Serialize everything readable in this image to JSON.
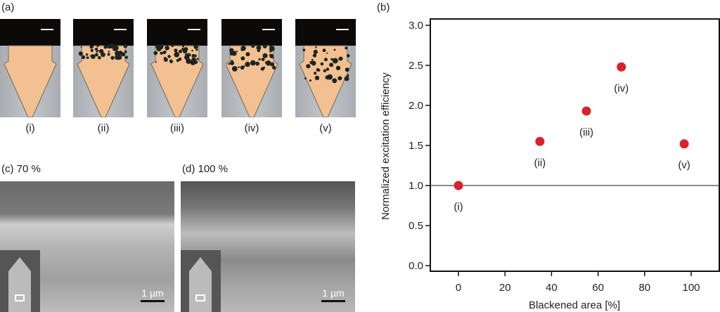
{
  "panel_a": {
    "label": "(a)",
    "captions": [
      "(i)",
      "(ii)",
      "(iii)",
      "(iv)",
      "(v)"
    ]
  },
  "panel_c": {
    "label": "(c) 70 %",
    "scale": "1 µm"
  },
  "panel_d": {
    "label": "(d) 100 %",
    "scale": "1 µm"
  },
  "panel_b": {
    "label": "(b)"
  },
  "chart_data": {
    "type": "scatter",
    "xlabel": "Blackened area [%]",
    "ylabel": "Normalized excitation efficiency",
    "xlim": [
      -12,
      112
    ],
    "ylim": [
      -0.05,
      3.1
    ],
    "xticks": [
      "0",
      "20",
      "40",
      "60",
      "80",
      "100"
    ],
    "yticks": [
      "0.0",
      "0.5",
      "1.0",
      "1.5",
      "2.0",
      "2.5",
      "3.0"
    ],
    "reference_line": 1.0,
    "marker_color": "#d8232a",
    "points": [
      {
        "x": 0,
        "y": 1.0,
        "label": "(i)"
      },
      {
        "x": 35,
        "y": 1.55,
        "label": "(ii)"
      },
      {
        "x": 55,
        "y": 1.93,
        "label": "(iii)"
      },
      {
        "x": 70,
        "y": 2.48,
        "label": "(iv)"
      },
      {
        "x": 97,
        "y": 1.52,
        "label": "(v)"
      }
    ]
  }
}
